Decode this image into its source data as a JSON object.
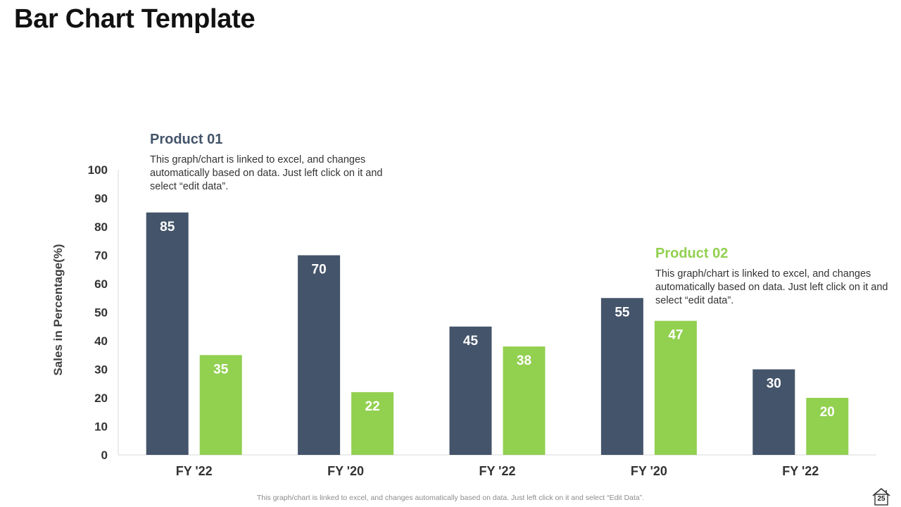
{
  "slide": {
    "title": "Bar Chart Template",
    "footer": "This graph/chart is linked to excel,  and changes automatically based on data. Just left click on it and select “Edit Data”.",
    "page_number": "25"
  },
  "callouts": [
    {
      "heading": "Product 01",
      "text": "This graph/chart is linked to excel, and changes automatically based on data. Just left click on it and select “edit data”."
    },
    {
      "heading": "Product 02",
      "text": "This graph/chart is linked to excel, and changes automatically based on data. Just left click on it and select “edit data”."
    }
  ],
  "chart_data": {
    "type": "bar",
    "title": "",
    "xlabel": "",
    "ylabel": "Sales in Percentage(%)",
    "categories": [
      "FY '22",
      "FY '20",
      "FY '22",
      "FY '20",
      "FY '22"
    ],
    "series": [
      {
        "name": "Product 01",
        "color": "#44546a",
        "values": [
          85,
          70,
          45,
          55,
          30
        ]
      },
      {
        "name": "Product 02",
        "color": "#92d050",
        "values": [
          35,
          22,
          38,
          47,
          20
        ]
      }
    ],
    "ylim": [
      0,
      100
    ],
    "yticks": [
      0,
      10,
      20,
      30,
      40,
      50,
      60,
      70,
      80,
      90,
      100
    ],
    "grid": false,
    "legend": "none"
  }
}
